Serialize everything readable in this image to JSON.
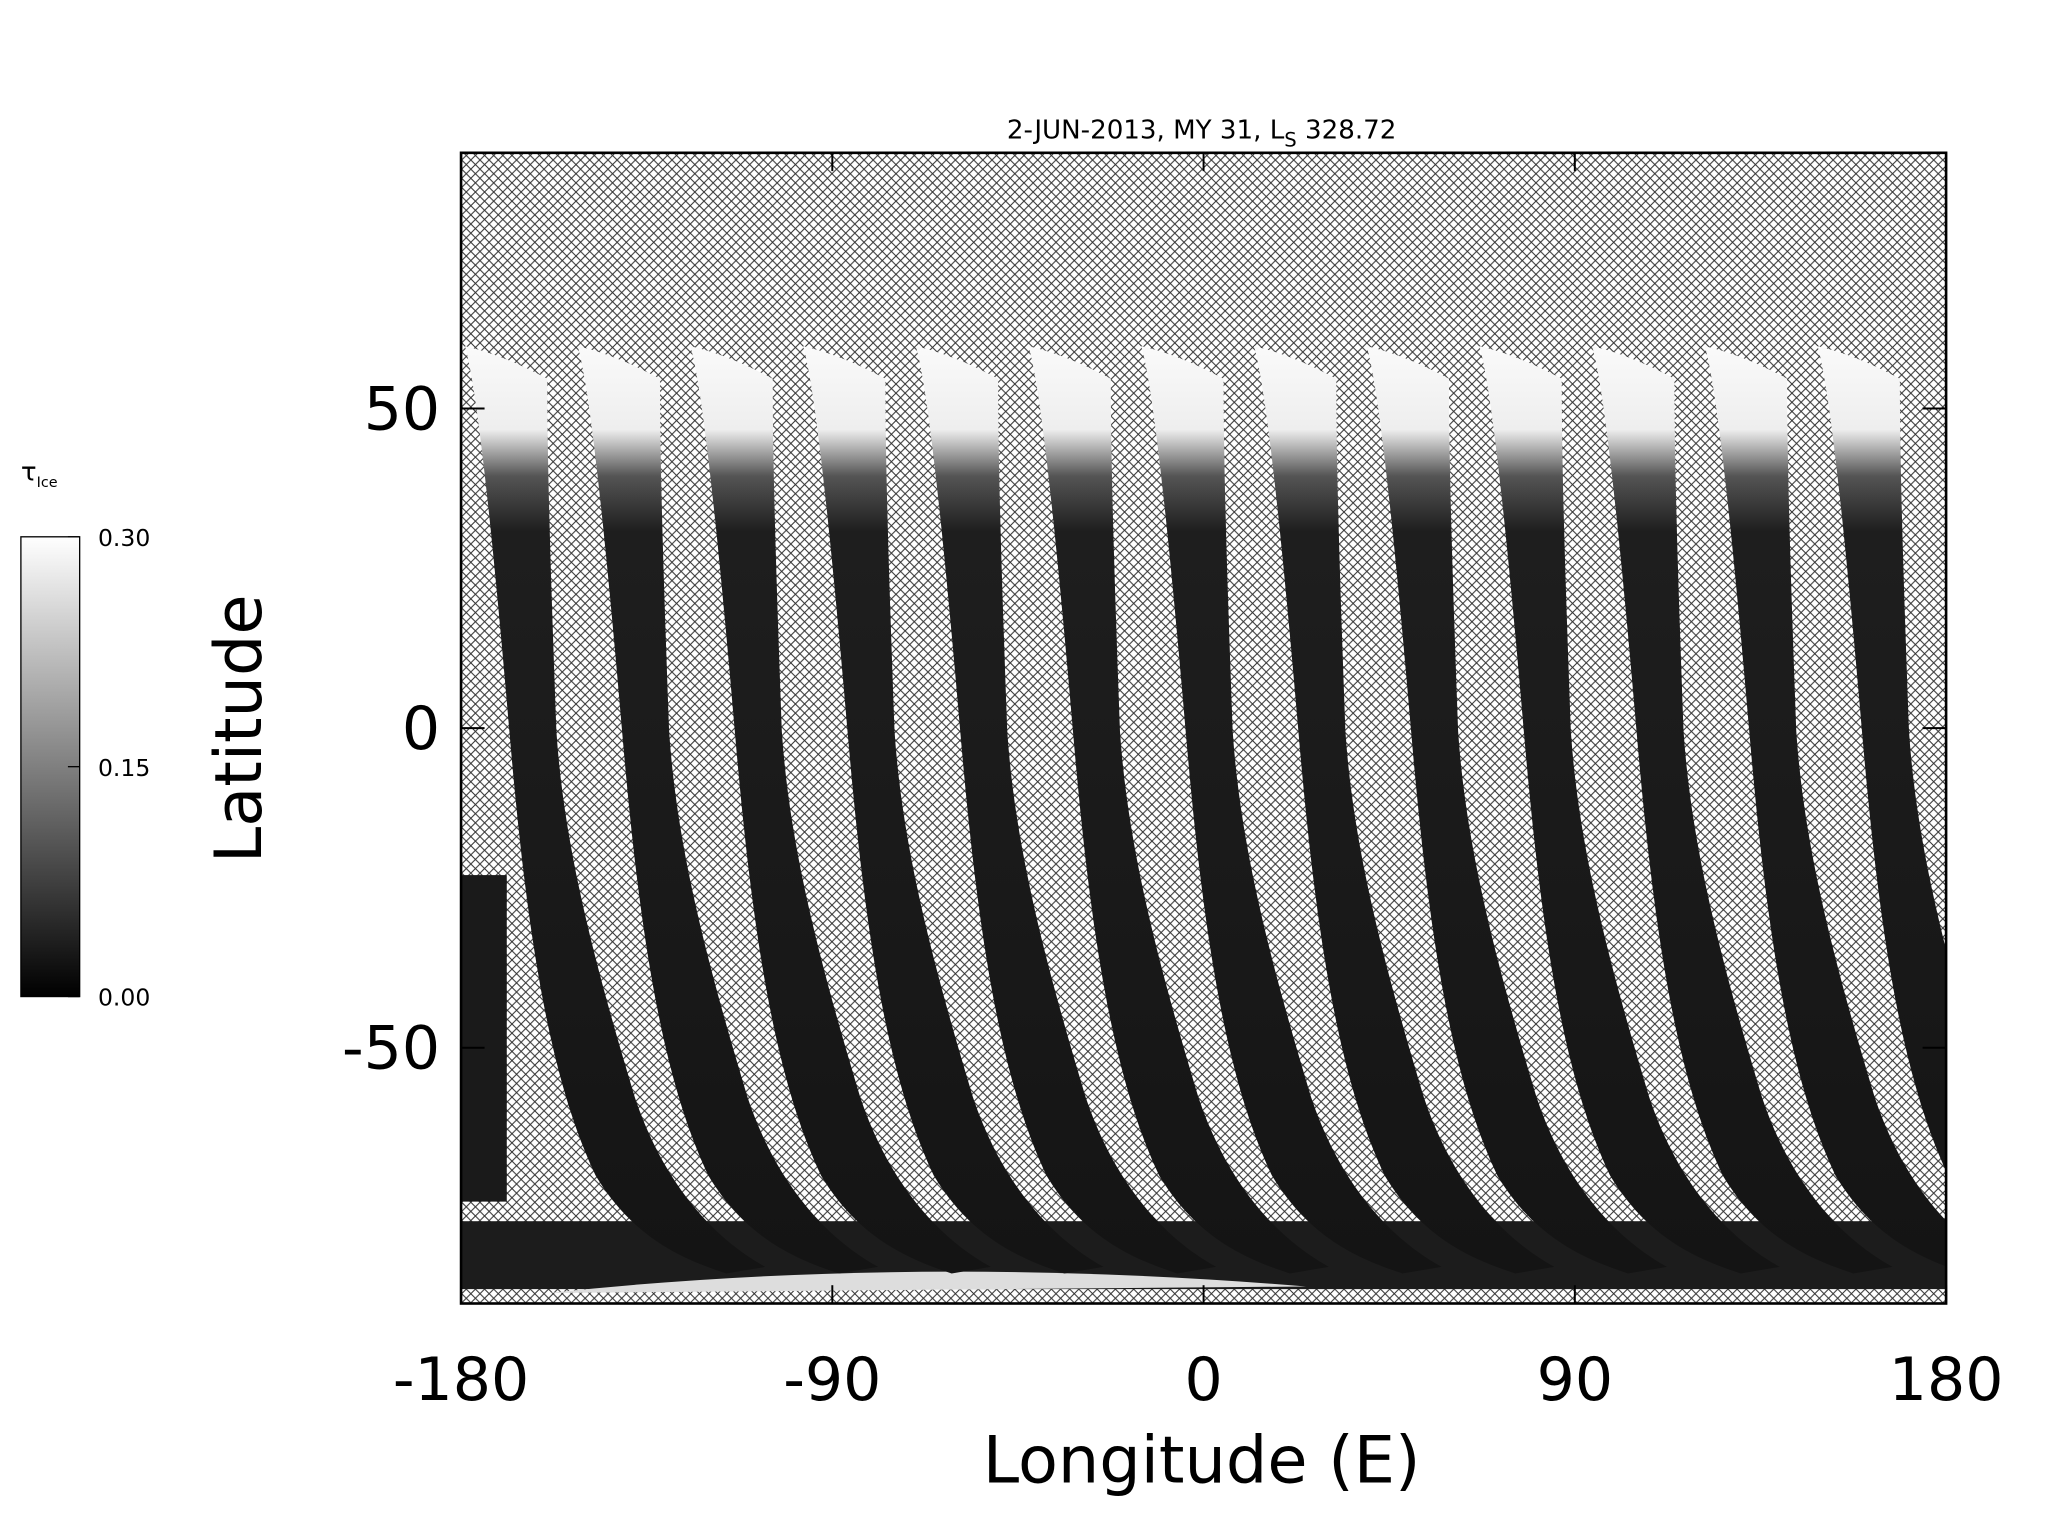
{
  "chart_data": {
    "type": "map",
    "title": [
      "2-JUN-2013, MY 31,  L",
      "S",
      " 328.72"
    ],
    "x_label": "Longitude (E)",
    "y_label": "Latitude",
    "xlim": [
      -180,
      180
    ],
    "xticks": [
      -180,
      -90,
      0,
      90,
      180
    ],
    "ylim": [
      -90,
      90
    ],
    "yticks": [
      -50,
      0,
      50
    ],
    "colorbar": {
      "label": [
        "τ",
        "Ice"
      ],
      "lim": [
        0,
        0.3
      ],
      "ticks": [
        {
          "value": 0,
          "label": "0.00"
        },
        {
          "value": 0.15,
          "label": "0.15"
        },
        {
          "value": 0.3,
          "label": "0.30"
        }
      ],
      "colors": [
        "#000000",
        "#ffffff"
      ]
    }
  }
}
